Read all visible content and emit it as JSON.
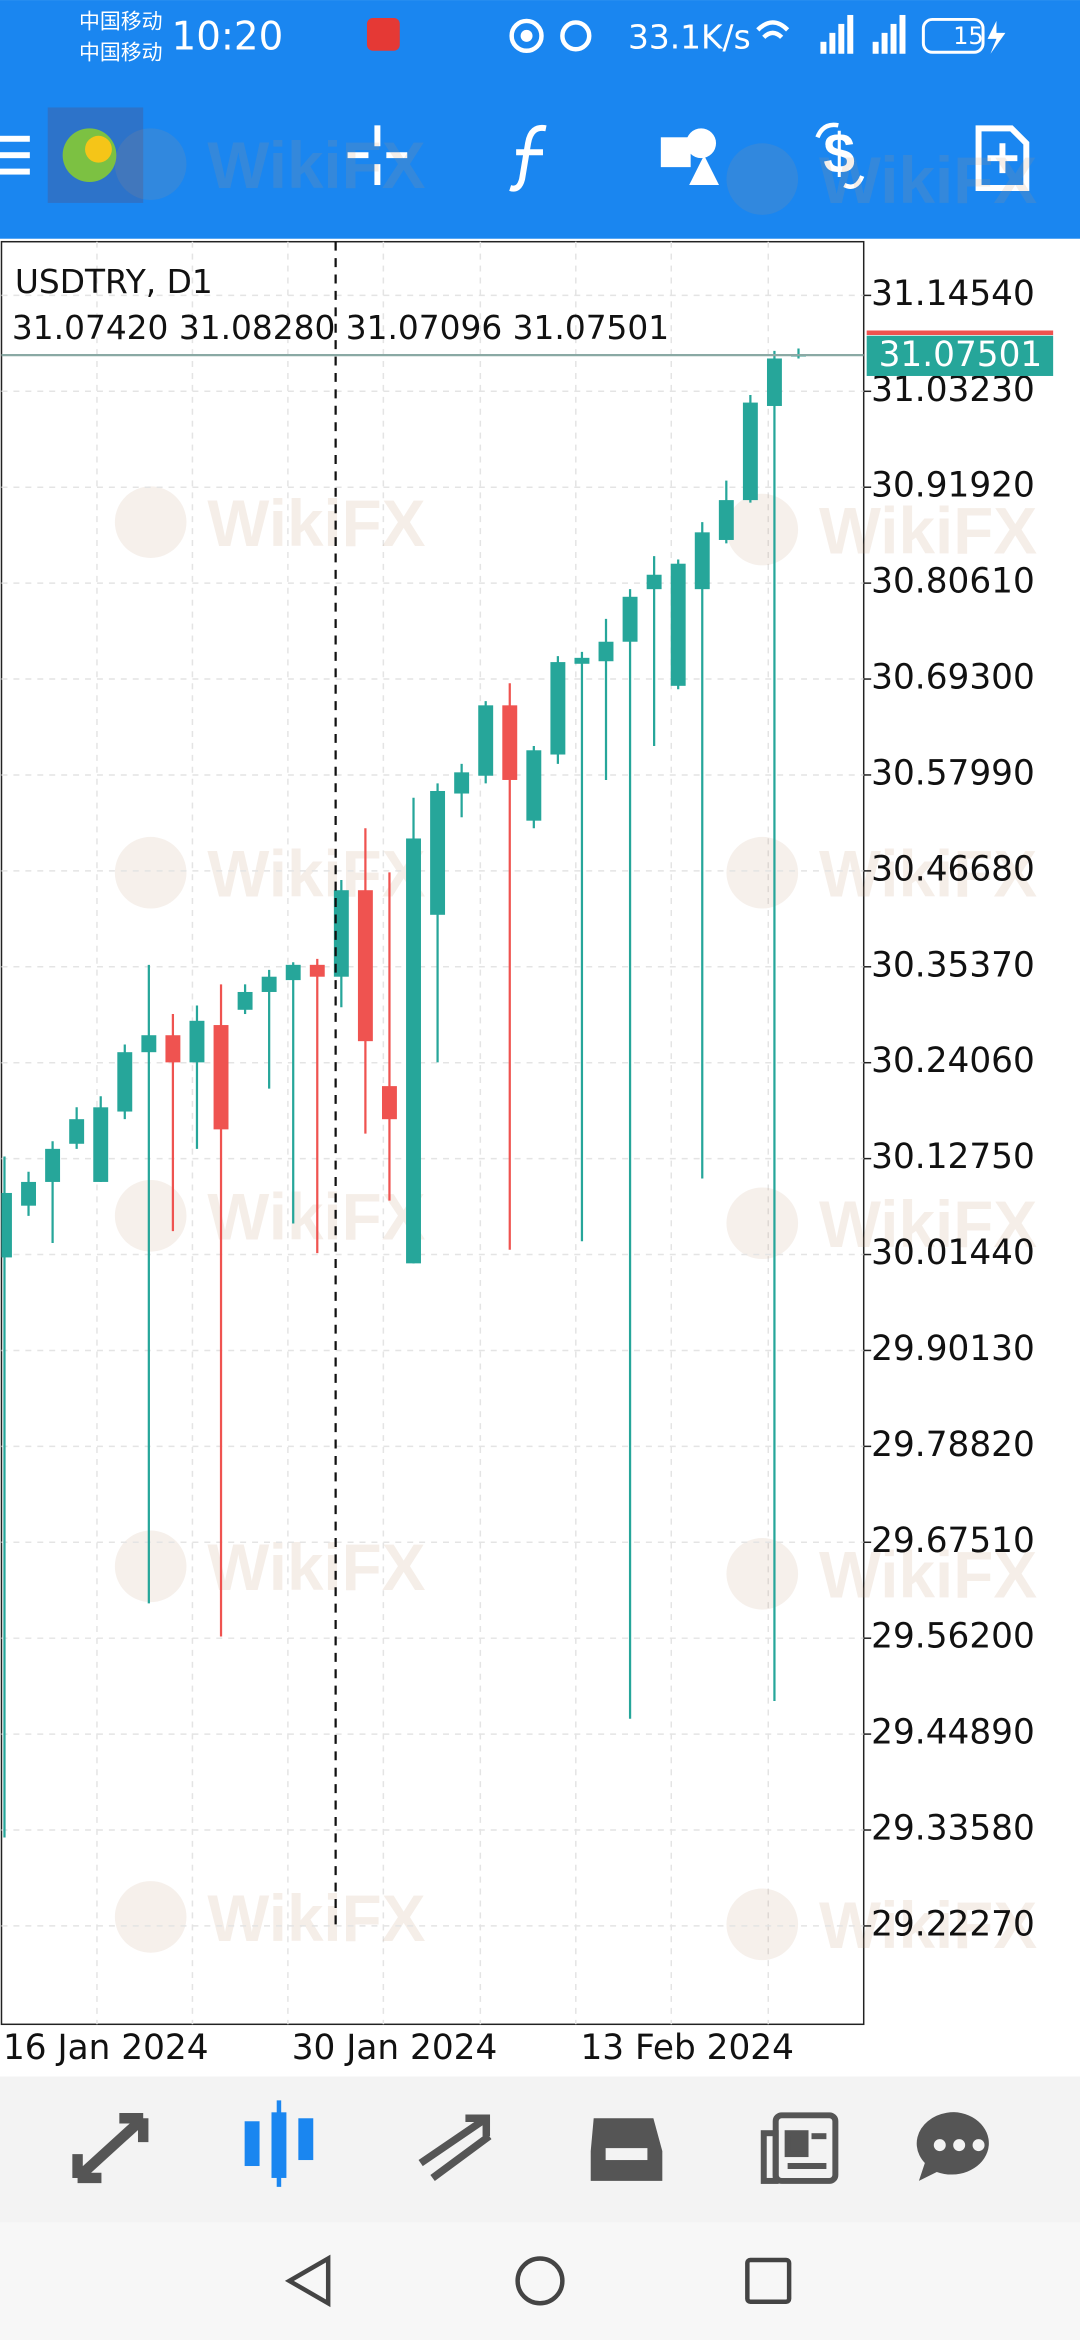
{
  "status_bar": {
    "carrier": [
      "中国移动",
      "中国移动"
    ],
    "time": "10:20",
    "speed": "33.1K/s",
    "battery": "15"
  },
  "watermark": "WikiFX",
  "chart_data": {
    "type": "candlestick",
    "title": "USDTRY, D1",
    "quote": "31.07420 31.08280 31.07096 31.07501",
    "categories": [
      "16 Jan 2024",
      null,
      null,
      null,
      null,
      null,
      null,
      null,
      null,
      null,
      null,
      null,
      "30 Jan 2024",
      null,
      null,
      null,
      null,
      null,
      null,
      null,
      null,
      null,
      null,
      null,
      "13 Feb 2024",
      null,
      null,
      null,
      null,
      null,
      null,
      null,
      null,
      null
    ],
    "open": [
      30.011,
      30.072,
      30.1,
      30.145,
      30.1,
      30.183,
      30.253,
      30.273,
      30.241,
      30.285,
      30.303,
      30.324,
      30.338,
      30.356,
      30.342,
      30.444,
      30.213,
      30.004,
      30.415,
      30.558,
      30.579,
      30.662,
      30.526,
      30.604,
      30.711,
      30.714,
      30.737,
      30.799,
      30.685,
      30.799,
      30.857,
      30.904,
      31.015,
      31.0742
    ],
    "high": [
      30.13,
      30.112,
      30.148,
      30.188,
      30.201,
      30.262,
      30.356,
      30.298,
      30.308,
      30.333,
      30.333,
      30.35,
      30.359,
      30.363,
      30.456,
      30.517,
      30.465,
      30.553,
      30.57,
      30.593,
      30.667,
      30.688,
      30.614,
      30.72,
      30.725,
      30.764,
      30.799,
      30.838,
      30.834,
      30.878,
      30.927,
      31.028,
      31.08,
      31.0828
    ],
    "low": [
      29.327,
      30.06,
      30.028,
      30.139,
      30.1,
      30.174,
      29.603,
      30.042,
      30.139,
      29.564,
      30.298,
      30.21,
      30.051,
      30.016,
      30.306,
      30.157,
      30.078,
      30.004,
      30.241,
      30.53,
      30.57,
      30.02,
      30.517,
      30.593,
      30.03,
      30.574,
      29.467,
      30.614,
      30.681,
      30.104,
      30.853,
      30.901,
      29.488,
      31.07096
    ],
    "close": [
      30.087,
      30.1,
      30.139,
      30.174,
      30.188,
      30.253,
      30.273,
      30.241,
      30.29,
      30.162,
      30.324,
      30.342,
      30.356,
      30.342,
      30.444,
      30.266,
      30.174,
      30.505,
      30.561,
      30.583,
      30.662,
      30.574,
      30.609,
      30.713,
      30.718,
      30.737,
      30.79,
      30.816,
      30.829,
      30.866,
      30.904,
      31.019,
      31.071,
      31.07501
    ],
    "up_color": "#26a69a",
    "down_color": "#ef5350",
    "ylim": [
      29.1067,
      31.2087
    ],
    "yticks": [
      {
        "value": 31.1454,
        "label": "31.14540"
      },
      {
        "value": 31.0323,
        "label": "31.03230"
      },
      {
        "value": 30.9192,
        "label": "30.91920"
      },
      {
        "value": 30.8061,
        "label": "30.80610"
      },
      {
        "value": 30.693,
        "label": "30.69300"
      },
      {
        "value": 30.5799,
        "label": "30.57990"
      },
      {
        "value": 30.4668,
        "label": "30.46680"
      },
      {
        "value": 30.3537,
        "label": "30.35370"
      },
      {
        "value": 30.2406,
        "label": "30.24060"
      },
      {
        "value": 30.1275,
        "label": "30.12750"
      },
      {
        "value": 30.0144,
        "label": "30.01440"
      },
      {
        "value": 29.9013,
        "label": "29.90130"
      },
      {
        "value": 29.7882,
        "label": "29.78820"
      },
      {
        "value": 29.6751,
        "label": "29.67510"
      },
      {
        "value": 29.562,
        "label": "29.56200"
      },
      {
        "value": 29.4489,
        "label": "29.44890"
      },
      {
        "value": 29.3358,
        "label": "29.33580"
      },
      {
        "value": 29.2227,
        "label": "29.22270"
      }
    ],
    "grid": true,
    "last_price": {
      "value": 31.07501,
      "label": "31.07501"
    }
  }
}
